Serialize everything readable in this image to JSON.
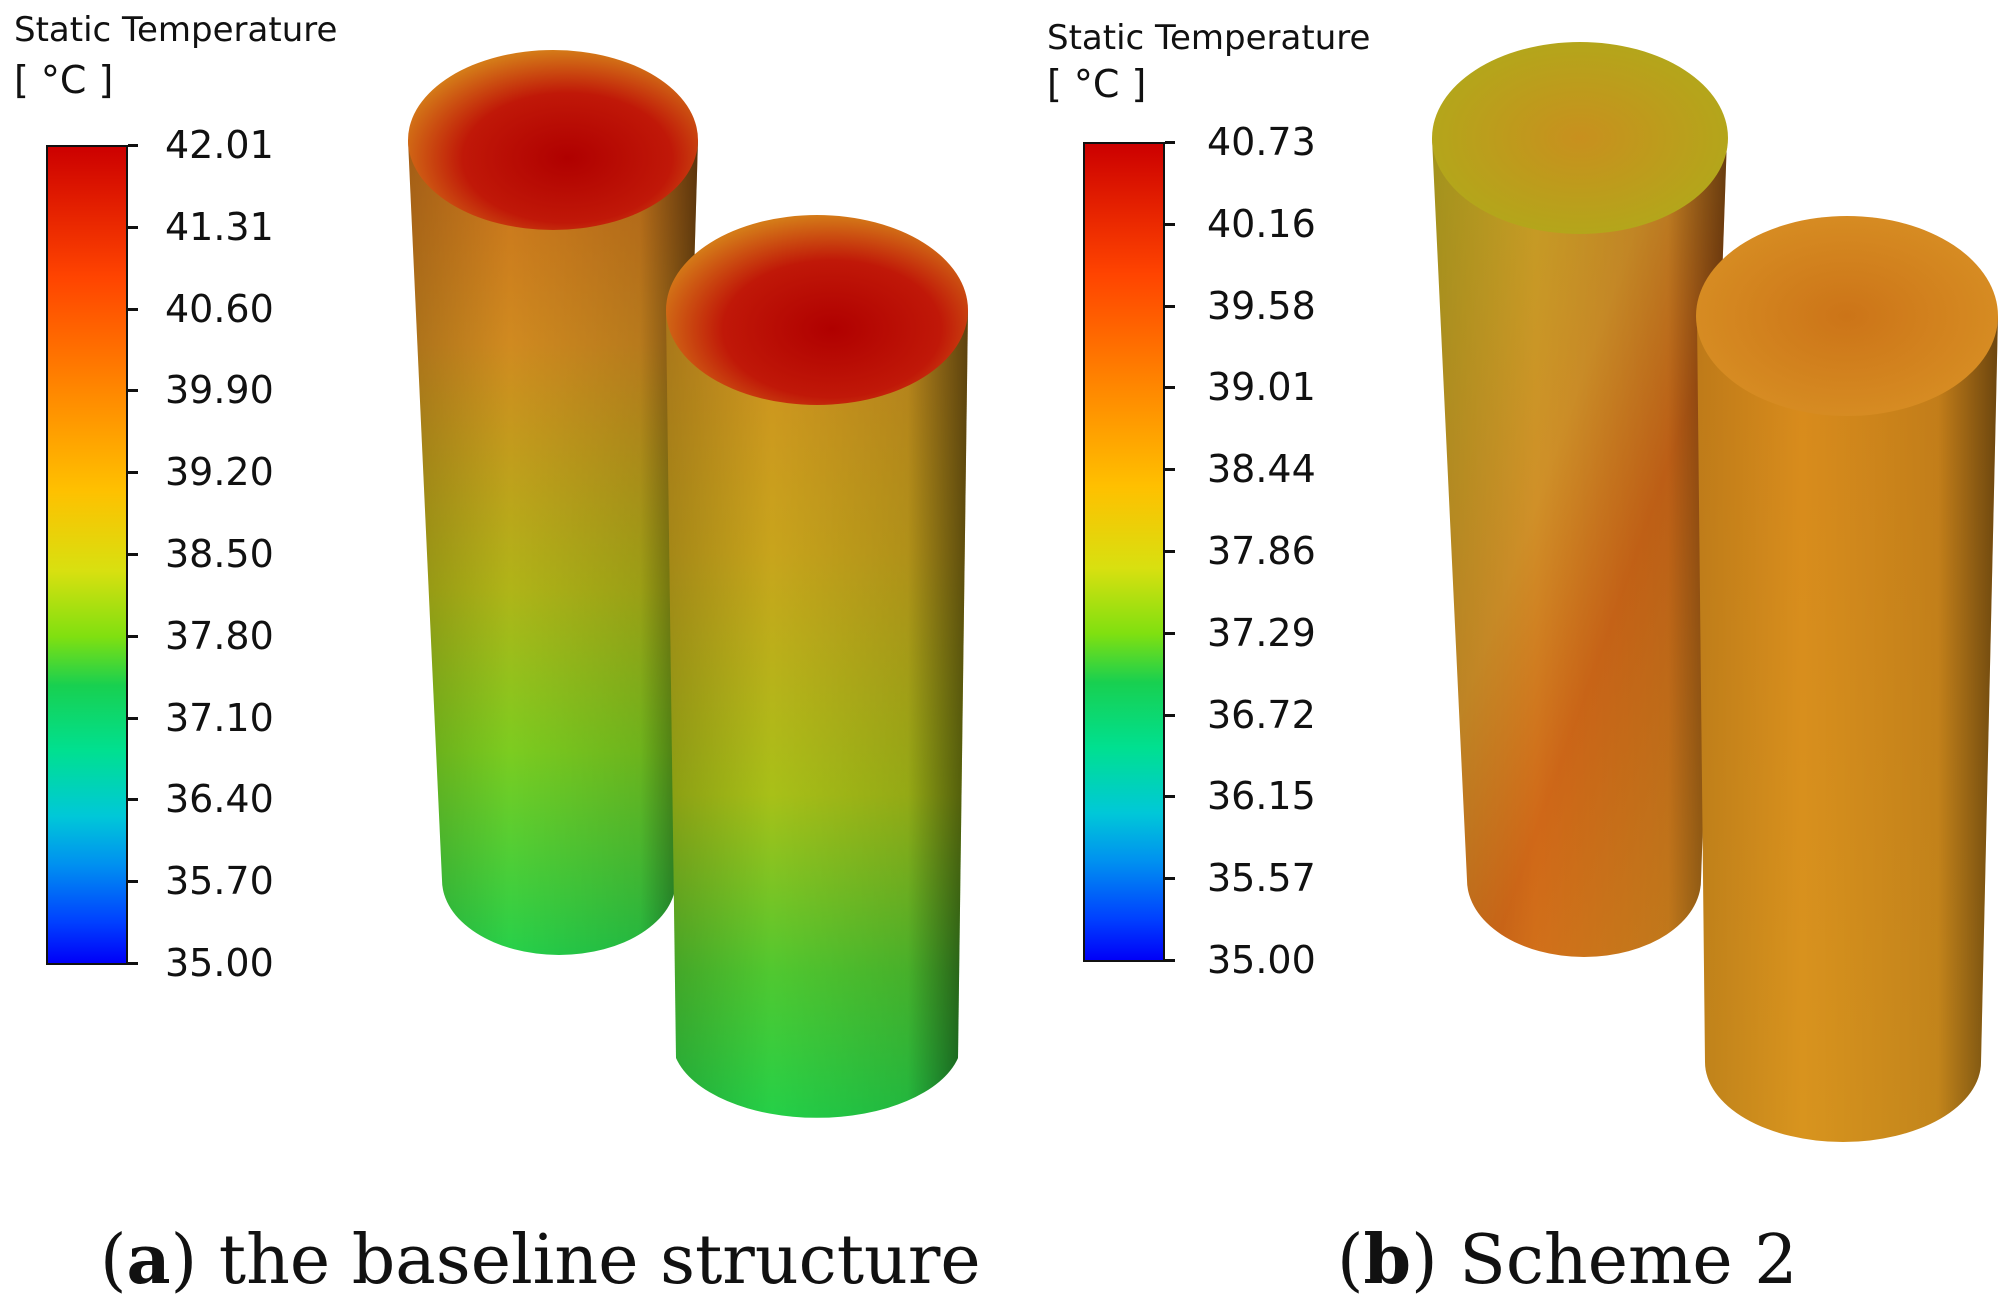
{
  "panel_a": {
    "legend_title": "Static Temperature",
    "legend_units": "[ °C ]",
    "ticks": [
      "42.01",
      "41.31",
      "40.60",
      "39.90",
      "39.20",
      "38.50",
      "37.80",
      "37.10",
      "36.40",
      "35.70",
      "35.00"
    ],
    "caption_label": "a",
    "caption_text": "the baseline structure"
  },
  "panel_b": {
    "legend_title": "Static Temperature",
    "legend_units": "[ °C ]",
    "ticks": [
      "40.73",
      "40.16",
      "39.58",
      "39.01",
      "38.44",
      "37.86",
      "37.29",
      "36.72",
      "36.15",
      "35.57",
      "35.00"
    ],
    "caption_label": "b",
    "caption_text": "Scheme 2"
  },
  "colors": {
    "hot": "#b80000",
    "orange": "#d98a1a",
    "yellow_green": "#b8b812",
    "green": "#22cc3a"
  }
}
